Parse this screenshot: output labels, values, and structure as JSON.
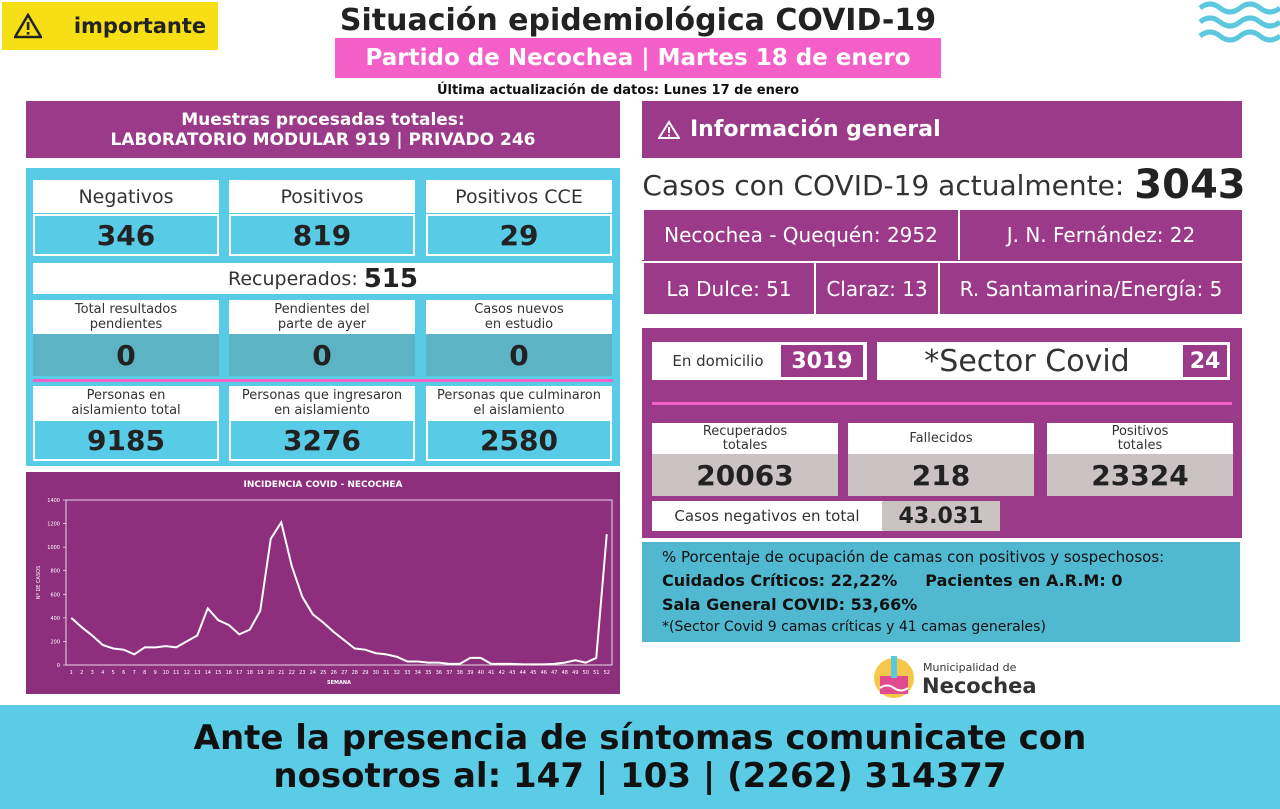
{
  "header": {
    "badge": "importante",
    "title": "Situación epidemiológica COVID-19",
    "subtitle": "Partido de Necochea | Martes 18 de enero",
    "update": "Última actualización de datos: Lunes 17 de enero"
  },
  "samples": {
    "line1": "Muestras procesadas totales:",
    "line2": "LABORATORIO MODULAR 919 | PRIVADO 246"
  },
  "tests": [
    {
      "label": "Negativos",
      "value": 346
    },
    {
      "label": "Positivos",
      "value": 819
    },
    {
      "label": "Positivos CCE",
      "value": 29
    }
  ],
  "recovered": {
    "label": "Recuperados:",
    "value": 515
  },
  "pending": [
    {
      "label": [
        "Total resultados",
        "pendientes"
      ],
      "value": 0
    },
    {
      "label": [
        "Pendientes del",
        "parte de ayer"
      ],
      "value": 0
    },
    {
      "label": [
        "Casos nuevos",
        "en estudio"
      ],
      "value": 0
    }
  ],
  "isolation": [
    {
      "label": [
        "Personas en",
        "aislamiento total"
      ],
      "value": 9185
    },
    {
      "label": [
        "Personas que ingresaron",
        "en aislamiento"
      ],
      "value": 3276
    },
    {
      "label": [
        "Personas que culminaron",
        "el aislamiento"
      ],
      "value": 2580
    }
  ],
  "chart_data": {
    "type": "line",
    "title": "INCIDENCIA COVID - NECOCHEA",
    "x_label": "SEMANA",
    "y_label": "Nº DE CASOS",
    "color": "#ffffff",
    "x": [
      1,
      2,
      3,
      4,
      5,
      6,
      7,
      8,
      9,
      10,
      11,
      12,
      13,
      14,
      15,
      16,
      17,
      18,
      19,
      20,
      21,
      22,
      23,
      24,
      25,
      26,
      27,
      28,
      29,
      30,
      31,
      32,
      33,
      34,
      35,
      36,
      37,
      38,
      39,
      40,
      41,
      42,
      43,
      44,
      45,
      46,
      47,
      48,
      49,
      50,
      51,
      52
    ],
    "values": [
      400,
      320,
      250,
      170,
      140,
      130,
      90,
      150,
      150,
      160,
      150,
      200,
      250,
      480,
      380,
      340,
      260,
      300,
      460,
      1070,
      1210,
      840,
      580,
      430,
      360,
      280,
      210,
      140,
      130,
      100,
      90,
      70,
      30,
      30,
      20,
      20,
      10,
      10,
      60,
      60,
      10,
      10,
      10,
      5,
      5,
      5,
      10,
      20,
      40,
      20,
      60,
      1110
    ],
    "xlim": [
      0.5,
      52.5
    ],
    "ylim": [
      0,
      1400
    ],
    "yticks": [
      0,
      200,
      400,
      600,
      800,
      1000,
      1200,
      1400
    ]
  },
  "general": {
    "title": "Información general",
    "active_label": "Casos con COVID-19 actualmente:",
    "active": 3043,
    "localities": [
      "Necochea - Quequén: 2952",
      "J. N. Fernández: 22",
      "La Dulce: 51",
      "Claraz: 13",
      "R. Santamarina/Energía: 5"
    ]
  },
  "home": {
    "label": "En domicilio",
    "value": 3019
  },
  "sector": {
    "label": "*Sector Covid",
    "value": 24
  },
  "totals": [
    {
      "label": [
        "Recuperados",
        "totales"
      ],
      "value": 20063
    },
    {
      "label": [
        "Fallecidos"
      ],
      "value": 218
    },
    {
      "label": [
        "Positivos",
        "totales"
      ],
      "value": 23324
    }
  ],
  "negatives": {
    "label": "Casos negativos en total",
    "value": "43.031"
  },
  "beds": {
    "title": "% Porcentaje de ocupación de camas con positivos y sospechosos:",
    "critical": "Cuidados Críticos: 22,22%",
    "arm": "Pacientes en A.R.M: 0",
    "general": "Sala General COVID: 53,66%",
    "note": "*(Sector Covid 9 camas críticas y  41 camas generales)"
  },
  "logo": {
    "line1": "Municipalidad de",
    "line2": "Necochea"
  },
  "footer": {
    "line1": "Ante la presencia de síntomas comunicate con",
    "line2": "nosotros al: 147 | 103 | (2262) 314377"
  }
}
